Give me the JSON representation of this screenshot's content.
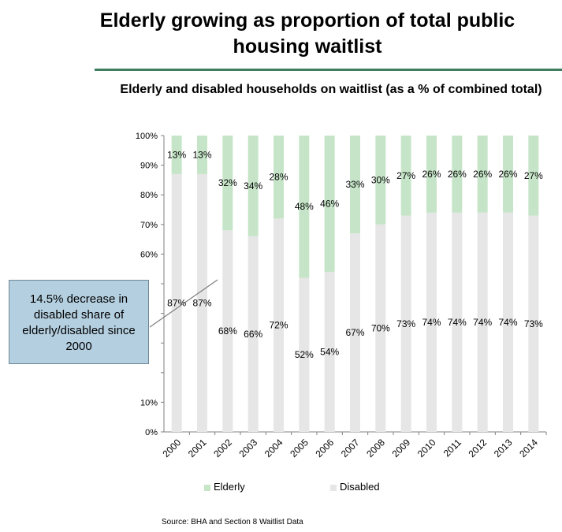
{
  "slide": {
    "title": "Elderly growing as proportion of total public housing waitlist",
    "source": "Source: BHA and Section 8 Waitlist Data",
    "callout": "14.5% decrease in disabled share of elderly/disabled since 2000"
  },
  "colors": {
    "elderly": "#c6e5c8",
    "disabled": "#e6e6e6",
    "divider": "#3f7f5f",
    "callout_fill": "#b4cfe0"
  },
  "chart_data": {
    "type": "bar",
    "stacked": true,
    "title": "Elderly and disabled households on waitlist (as a % of combined total)",
    "xlabel": "",
    "ylabel": "",
    "ylim": [
      0,
      100
    ],
    "yticks": [
      "0%",
      "10%",
      "60%",
      "70%",
      "80%",
      "90%",
      "100%"
    ],
    "categories": [
      "2000",
      "2001",
      "2002",
      "2003",
      "2004",
      "2005",
      "2006",
      "2007",
      "2008",
      "2009",
      "2010",
      "2011",
      "2012",
      "2013",
      "2014"
    ],
    "series": [
      {
        "name": "Disabled",
        "values": [
          87,
          87,
          68,
          66,
          72,
          52,
          54,
          67,
          70,
          73,
          74,
          74,
          74,
          74,
          73
        ],
        "labels": [
          "87%",
          "87%",
          "68%",
          "66%",
          "72%",
          "52%",
          "54%",
          "67%",
          "70%",
          "73%",
          "74%",
          "74%",
          "74%",
          "74%",
          "73%"
        ]
      },
      {
        "name": "Elderly",
        "values": [
          13,
          13,
          32,
          34,
          28,
          48,
          46,
          33,
          30,
          27,
          26,
          26,
          26,
          26,
          27
        ],
        "labels": [
          "13%",
          "13%",
          "32%",
          "34%",
          "28%",
          "48%",
          "46%",
          "33%",
          "30%",
          "27%",
          "26%",
          "26%",
          "26%",
          "26%",
          "27%"
        ]
      }
    ],
    "legend": [
      "Elderly",
      "Disabled"
    ],
    "legend_position": "bottom",
    "grid": false
  }
}
